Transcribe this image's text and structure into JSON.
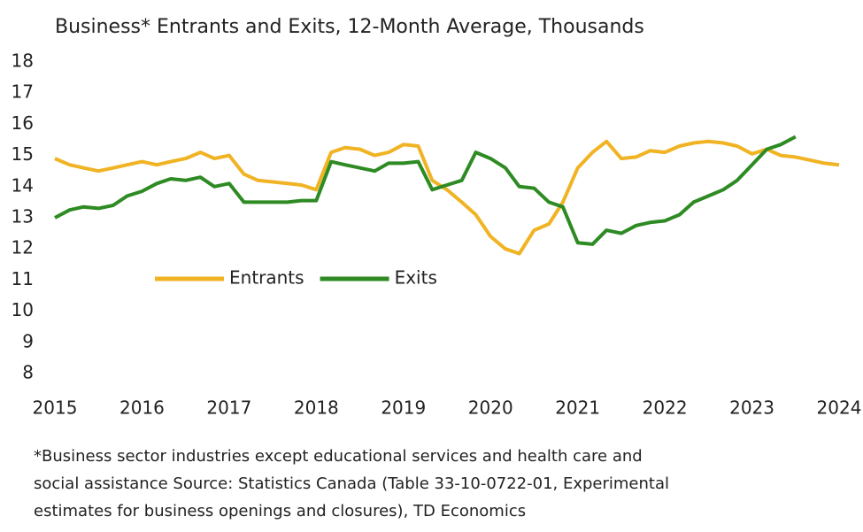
{
  "chart_data": {
    "type": "line",
    "title": "Business* Entrants and Exits, 12-Month Average, Thousands",
    "note": [
      "*Business sector industries except educational services and health care and",
      "social assistance Source: Statistics Canada (Table 33-10-0722-01, Experimental",
      "estimates for business openings and closures), TD Economics"
    ],
    "x": [
      2015,
      2015.17,
      2015.33,
      2015.5,
      2015.67,
      2015.83,
      2016,
      2016.17,
      2016.33,
      2016.5,
      2016.67,
      2016.83,
      2017,
      2017.17,
      2017.33,
      2017.5,
      2017.67,
      2017.83,
      2018,
      2018.17,
      2018.33,
      2018.5,
      2018.67,
      2018.83,
      2019,
      2019.17,
      2019.33,
      2019.5,
      2019.67,
      2019.83,
      2020,
      2020.17,
      2020.33,
      2020.5,
      2020.67,
      2020.83,
      2021,
      2021.17,
      2021.33,
      2021.5,
      2021.67,
      2021.83,
      2022,
      2022.17,
      2022.33,
      2022.5,
      2022.67,
      2022.83,
      2023,
      2023.17,
      2023.33,
      2023.5,
      2023.67,
      2023.83,
      2024
    ],
    "series": [
      {
        "name": "Entrants",
        "color": "#f0b323",
        "values": [
          14.9,
          14.7,
          14.6,
          14.5,
          14.6,
          14.7,
          14.8,
          14.7,
          14.8,
          14.9,
          15.1,
          14.9,
          15.0,
          14.4,
          14.2,
          14.15,
          14.1,
          14.05,
          13.9,
          15.1,
          15.25,
          15.2,
          15.0,
          15.1,
          15.35,
          15.3,
          14.2,
          13.9,
          13.5,
          13.1,
          12.4,
          12.0,
          11.85,
          12.6,
          12.8,
          13.5,
          14.6,
          15.1,
          15.45,
          14.9,
          14.95,
          15.15,
          15.1,
          15.3,
          15.4,
          15.45,
          15.4,
          15.3,
          15.05,
          15.2,
          15.0,
          14.95,
          14.85,
          14.75,
          14.7
        ]
      },
      {
        "name": "Exits",
        "color": "#2e8b23",
        "values": [
          13.0,
          13.25,
          13.35,
          13.3,
          13.4,
          13.7,
          13.85,
          14.1,
          14.25,
          14.2,
          14.3,
          14.0,
          14.1,
          13.5,
          13.5,
          13.5,
          13.5,
          13.55,
          13.55,
          14.8,
          14.7,
          14.6,
          14.5,
          14.75,
          14.75,
          14.8,
          13.9,
          14.05,
          14.2,
          15.1,
          14.9,
          14.6,
          14.0,
          13.95,
          13.5,
          13.35,
          12.2,
          12.15,
          12.6,
          12.5,
          12.75,
          12.85,
          12.9,
          13.1,
          13.5,
          13.7,
          13.9,
          14.2,
          14.7,
          15.2,
          15.35,
          15.6,
          null,
          null,
          null
        ]
      }
    ],
    "xlim": [
      2015,
      2024
    ],
    "xticks": [
      2015,
      2016,
      2017,
      2018,
      2019,
      2020,
      2021,
      2022,
      2023,
      2024
    ],
    "ylim": [
      8,
      18
    ],
    "yticks": [
      8,
      9,
      10,
      11,
      12,
      13,
      14,
      15,
      16,
      17,
      18
    ],
    "grid": false,
    "legend": "center-left"
  }
}
